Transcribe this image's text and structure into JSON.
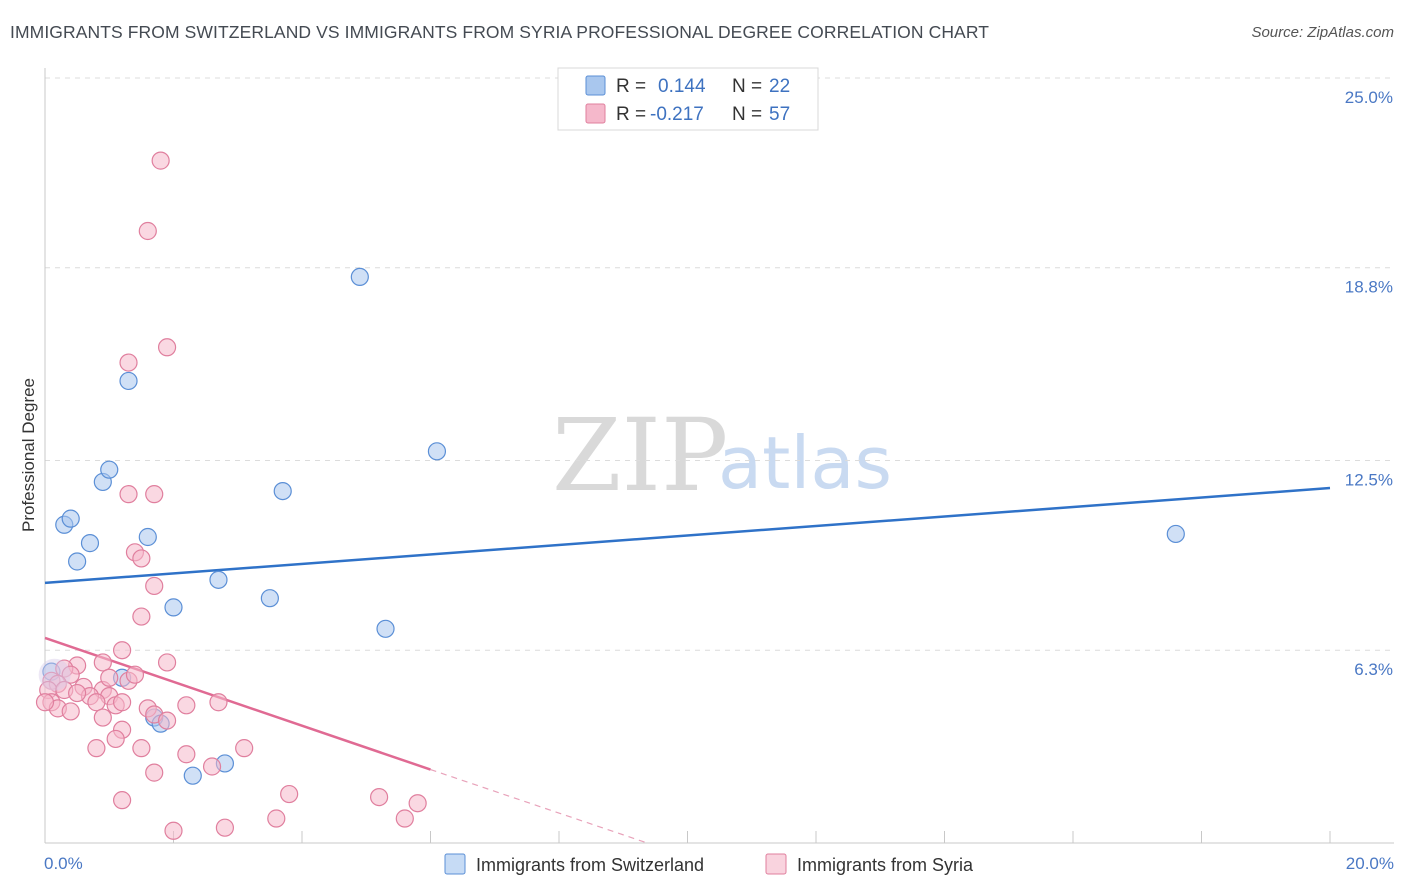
{
  "title": "IMMIGRANTS FROM SWITZERLAND VS IMMIGRANTS FROM SYRIA PROFESSIONAL DEGREE CORRELATION CHART",
  "source": "Source: ZipAtlas.com",
  "watermark": {
    "zip": "ZIP",
    "atlas": "atlas"
  },
  "legend_top": [
    {
      "r_label": "R =",
      "r_value": "0.144",
      "n_label": "N =",
      "n_value": "22",
      "color": "#a9c7ee",
      "stroke": "#5b8fd6"
    },
    {
      "r_label": "R =",
      "r_value": "-0.217",
      "n_label": "N =",
      "n_value": "57",
      "color": "#f5b8cb",
      "stroke": "#e07f9e"
    }
  ],
  "legend_bottom": [
    {
      "label": "Immigrants from Switzerland",
      "color": "#c6dbf5",
      "stroke": "#5b8fd6"
    },
    {
      "label": "Immigrants from Syria",
      "color": "#f9d3de",
      "stroke": "#e07f9e"
    }
  ],
  "chart_data": {
    "type": "scatter",
    "title": "IMMIGRANTS FROM SWITZERLAND VS IMMIGRANTS FROM SYRIA PROFESSIONAL DEGREE CORRELATION CHART",
    "xlabel": "",
    "ylabel": "Professional Degree",
    "xlim": [
      0,
      20
    ],
    "ylim": [
      0,
      25
    ],
    "x_tick_labels": [
      "0.0%",
      "20.0%"
    ],
    "y_ticks": [
      6.3,
      12.5,
      18.8,
      25.0
    ],
    "y_tick_labels": [
      "6.3%",
      "12.5%",
      "18.8%",
      "25.0%"
    ],
    "series": [
      {
        "name": "Immigrants from Switzerland",
        "color": "#5b8fd6",
        "fill": "#a9c7ee",
        "trend": {
          "x": [
            0,
            20
          ],
          "y": [
            8.5,
            11.6
          ],
          "style": "solid"
        },
        "points": [
          [
            0.3,
            10.4
          ],
          [
            0.4,
            10.6
          ],
          [
            0.5,
            9.2
          ],
          [
            0.7,
            9.8
          ],
          [
            0.9,
            11.8
          ],
          [
            1.0,
            12.2
          ],
          [
            1.3,
            15.1
          ],
          [
            1.6,
            10.0
          ],
          [
            2.0,
            7.7
          ],
          [
            2.7,
            8.6
          ],
          [
            3.5,
            8.0
          ],
          [
            3.7,
            11.5
          ],
          [
            4.9,
            18.5
          ],
          [
            5.3,
            7.0
          ],
          [
            6.1,
            12.8
          ],
          [
            1.2,
            5.4
          ],
          [
            1.7,
            4.1
          ],
          [
            1.8,
            3.9
          ],
          [
            2.3,
            2.2
          ],
          [
            2.8,
            2.6
          ],
          [
            0.1,
            5.6
          ],
          [
            17.6,
            10.1
          ]
        ]
      },
      {
        "name": "Immigrants from Syria",
        "color": "#e07f9e",
        "fill": "#f5b8cb",
        "trend": {
          "x": [
            0,
            6.0
          ],
          "y": [
            6.7,
            2.4
          ],
          "style": "solid",
          "dashed_x": [
            6.0,
            10.5
          ],
          "dashed_y": [
            2.4,
            -0.8
          ]
        },
        "points": [
          [
            1.8,
            22.3
          ],
          [
            1.6,
            20.0
          ],
          [
            1.9,
            16.2
          ],
          [
            1.3,
            15.7
          ],
          [
            1.3,
            11.4
          ],
          [
            1.7,
            11.4
          ],
          [
            1.4,
            9.5
          ],
          [
            1.5,
            9.3
          ],
          [
            1.7,
            8.4
          ],
          [
            1.5,
            7.4
          ],
          [
            1.2,
            6.3
          ],
          [
            1.9,
            5.9
          ],
          [
            0.5,
            5.8
          ],
          [
            0.9,
            5.9
          ],
          [
            0.3,
            5.7
          ],
          [
            0.4,
            5.5
          ],
          [
            0.1,
            5.3
          ],
          [
            0.2,
            5.2
          ],
          [
            0.05,
            5.0
          ],
          [
            0.3,
            5.0
          ],
          [
            0.6,
            5.1
          ],
          [
            0.9,
            5.0
          ],
          [
            1.0,
            4.8
          ],
          [
            0.7,
            4.8
          ],
          [
            0.1,
            4.6
          ],
          [
            0.2,
            4.4
          ],
          [
            0.4,
            4.3
          ],
          [
            0.8,
            4.6
          ],
          [
            1.1,
            4.5
          ],
          [
            1.3,
            5.3
          ],
          [
            1.2,
            4.6
          ],
          [
            1.6,
            4.4
          ],
          [
            1.7,
            4.2
          ],
          [
            1.9,
            4.0
          ],
          [
            2.2,
            4.5
          ],
          [
            2.7,
            4.6
          ],
          [
            0.9,
            4.1
          ],
          [
            1.2,
            3.7
          ],
          [
            1.1,
            3.4
          ],
          [
            0.8,
            3.1
          ],
          [
            1.5,
            3.1
          ],
          [
            2.2,
            2.9
          ],
          [
            2.6,
            2.5
          ],
          [
            3.1,
            3.1
          ],
          [
            1.7,
            2.3
          ],
          [
            3.8,
            1.6
          ],
          [
            5.2,
            1.5
          ],
          [
            5.8,
            1.3
          ],
          [
            1.2,
            1.4
          ],
          [
            3.6,
            0.8
          ],
          [
            5.6,
            0.8
          ],
          [
            2.0,
            0.4
          ],
          [
            2.8,
            0.5
          ],
          [
            0.0,
            4.6
          ],
          [
            1.0,
            5.4
          ],
          [
            0.5,
            4.9
          ],
          [
            1.4,
            5.5
          ]
        ]
      }
    ]
  }
}
